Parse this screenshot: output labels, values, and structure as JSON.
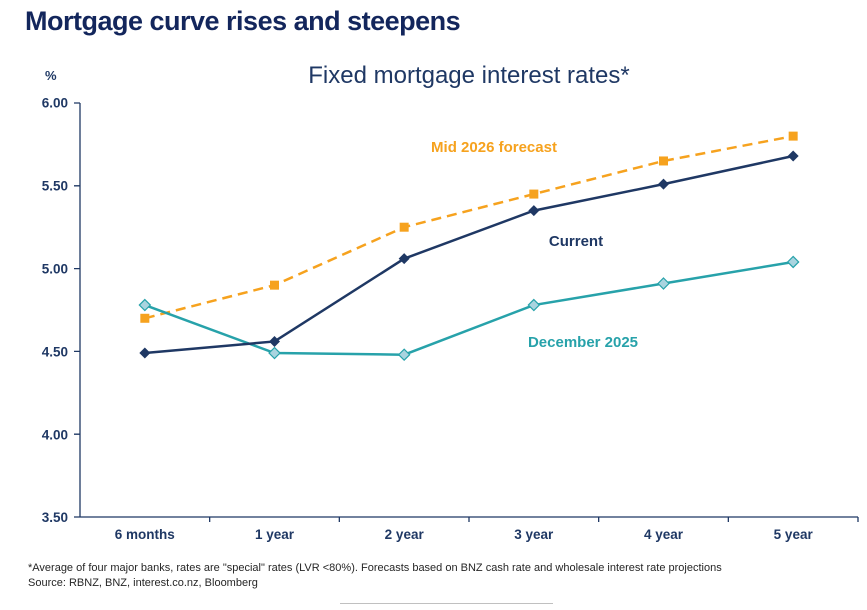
{
  "header": {
    "title": "Mortgage curve rises and steepens"
  },
  "chart_data": {
    "type": "line",
    "title": "Fixed mortgage interest rates*",
    "y_axis_unit": "%",
    "categories": [
      "6 months",
      "1 year",
      "2 year",
      "3 year",
      "4 year",
      "5 year"
    ],
    "ylim": [
      3.5,
      6.0
    ],
    "y_tick_labels": [
      "6.00",
      "5.50",
      "5.00",
      "4.50",
      "4.00",
      "3.50"
    ],
    "grid": false,
    "legend": "inline-labels-near-lines",
    "axis_color": "#1f3864",
    "series": [
      {
        "name": "Mid 2026 forecast",
        "values": [
          4.7,
          4.9,
          5.25,
          5.45,
          5.65,
          5.8
        ],
        "color": "#f6a21e",
        "marker_fill": "#f6a21e",
        "line_style": "dashed",
        "marker": "square"
      },
      {
        "name": "December 2025",
        "values": [
          4.78,
          4.49,
          4.48,
          4.78,
          4.91,
          5.04
        ],
        "color": "#27a2aa",
        "marker_fill": "#a9d4df",
        "line_style": "solid",
        "marker": "diamond"
      },
      {
        "name": "Current",
        "values": [
          4.49,
          4.56,
          5.06,
          5.35,
          5.51,
          5.68
        ],
        "color": "#1f3864",
        "marker_fill": "#1f3864",
        "line_style": "solid",
        "marker": "diamond"
      }
    ]
  },
  "footnote": {
    "line1": "*Average of four major banks, rates are \"special\" rates (LVR <80%). Forecasts based on BNZ cash rate and wholesale interest rate projections",
    "line2": "Source: RBNZ, BNZ, interest.co.nz, Bloomberg"
  }
}
